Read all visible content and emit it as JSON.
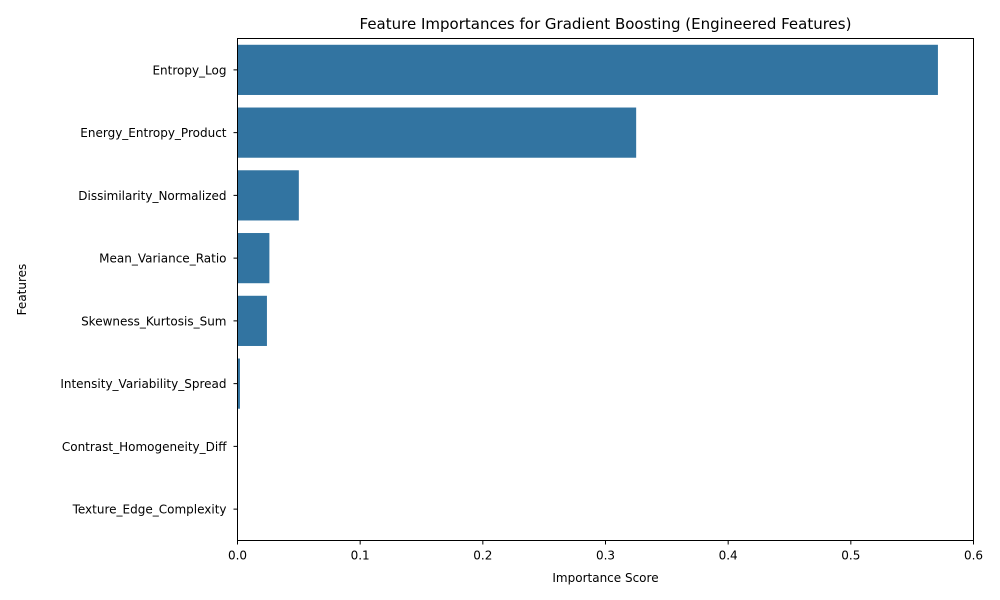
{
  "chart_data": {
    "type": "bar",
    "orientation": "horizontal",
    "title": "Feature Importances for Gradient Boosting (Engineered Features)",
    "xlabel": "Importance Score",
    "ylabel": "Features",
    "xlim": [
      0,
      0.6
    ],
    "x_ticks": [
      "0.0",
      "0.1",
      "0.2",
      "0.3",
      "0.4",
      "0.5",
      "0.6"
    ],
    "grid": false,
    "bar_color": "#3274a1",
    "categories": [
      "Entropy_Log",
      "Energy_Entropy_Product",
      "Dissimilarity_Normalized",
      "Mean_Variance_Ratio",
      "Skewness_Kurtosis_Sum",
      "Intensity_Variability_Spread",
      "Contrast_Homogeneity_Diff",
      "Texture_Edge_Complexity"
    ],
    "values": [
      0.571,
      0.325,
      0.05,
      0.026,
      0.024,
      0.002,
      0.0002,
      0.0001
    ]
  }
}
